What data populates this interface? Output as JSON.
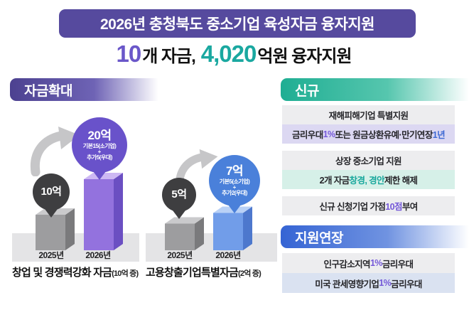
{
  "header": {
    "title": "2026년 충청북도 중소기업 육성자금 융자지원"
  },
  "subtitle": {
    "count": "10",
    "count_unit": "개 자금,",
    "amount": "4,020",
    "amount_unit": "억원 융자지원"
  },
  "colors": {
    "banner_bg": "#564a9e",
    "count_accent": "#6a57c9",
    "amount_accent": "#1aa8a0",
    "purple_accent": "#7458d8",
    "blue_accent": "#3f6ad4",
    "teal_accent": "#17a79c",
    "new_badge": "#1fae93",
    "extension_badge": "#3564d4"
  },
  "sections": {
    "expansion": {
      "title": "자금확대"
    },
    "new": {
      "title": "신규",
      "rows": [
        {
          "parts": [
            "재해피해기업 특별지원"
          ]
        },
        {
          "parts": [
            "금리우대 ",
            "1%",
            " 또는 원금상환유예·만기연장 ",
            "1년"
          ]
        },
        {
          "parts": [
            "상장 중소기업 지원"
          ]
        },
        {
          "parts": [
            "2개 자금 ",
            "창경, 경안",
            " 제한 해제"
          ]
        },
        {
          "parts": [
            "신규 신청기업 가점 ",
            "10점",
            " 부여"
          ]
        }
      ]
    },
    "extension": {
      "title": "지원연장",
      "rows": [
        {
          "parts": [
            "인구감소지역 ",
            "1%",
            " 금리우대"
          ]
        },
        {
          "parts": [
            "미국 관세영향기업 ",
            "1%",
            " 금리우대"
          ]
        }
      ]
    }
  },
  "chart_data": [
    {
      "type": "bar",
      "title": "창업 및 경쟁력강화 자금",
      "title_note": "(10억 증)",
      "categories": [
        "2025년",
        "2026년"
      ],
      "values": [
        10,
        20
      ],
      "unit": "억원",
      "value_labels": [
        "10억",
        "20억"
      ],
      "bar2_breakdown": [
        "기본15(소기업)",
        "+",
        "추가5(우대)"
      ],
      "bar_colors": [
        {
          "front": "#9d9d9f",
          "side": "#7a7a7c",
          "top": "#cacacc"
        },
        {
          "front": "#9372de",
          "side": "#6b4fc2",
          "top": "#cdb8f3"
        }
      ],
      "ylim": [
        0,
        22
      ],
      "legend": false
    },
    {
      "type": "bar",
      "title": "고용창출기업특별자금",
      "title_note": "(2억 증)",
      "categories": [
        "2025년",
        "2026년"
      ],
      "values": [
        5,
        7
      ],
      "unit": "억원",
      "value_labels": [
        "5억",
        "7억"
      ],
      "bar2_breakdown": [
        "기본5(소기업)",
        "+",
        "추가2(우대)"
      ],
      "bar_colors": [
        {
          "front": "#9d9d9f",
          "side": "#7a7a7c",
          "top": "#cacacc"
        },
        {
          "front": "#719de9",
          "side": "#4d78cd",
          "top": "#b9d1f6"
        }
      ],
      "ylim": [
        0,
        8
      ],
      "legend": false
    }
  ]
}
